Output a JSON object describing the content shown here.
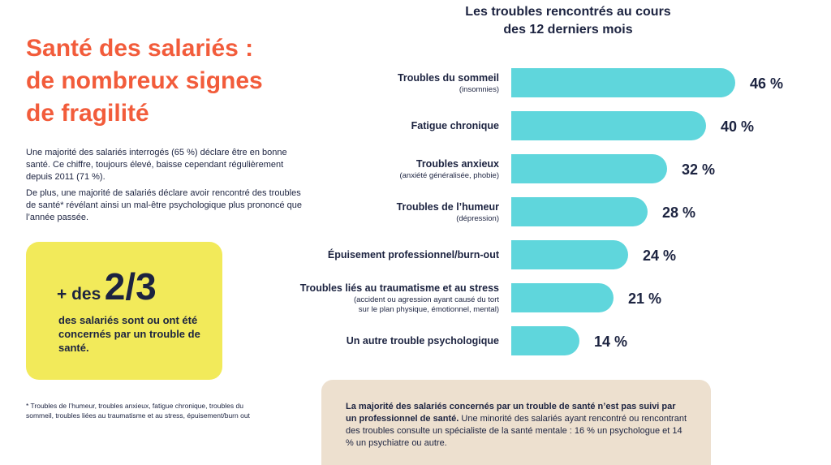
{
  "page": {
    "title_lines": [
      "Santé des salariés :",
      "de nombreux signes",
      "de fragilité"
    ],
    "paragraph1": "Une majorité des salariés interrogés (65 %) déclare être en bonne santé. Ce chiffre, toujours élevé, baisse cependant régulièrement depuis 2011 (71 %).",
    "paragraph2": "De plus, une majorité de salariés déclare avoir rencontré des troubles de santé* révélant ainsi un mal-être psychologique plus prononcé que l’année passée.",
    "footnote": "* Troubles de l’humeur, troubles anxieux, fatigue chronique, troubles du sommeil, troubles liées au traumatisme et au stress, épuisement/burn out"
  },
  "callout": {
    "prefix": "+ des",
    "fraction": "2/3",
    "text": "des salariés sont ou ont été concernés par un trouble de santé."
  },
  "note": {
    "bold": "La majorité des salariés concernés par un trouble de santé n’est pas suivi par un professionnel de santé.",
    "rest": " Une minorité des salariés ayant rencontré ou rencontrant des troubles consulte un spécialiste de la santé mentale : 16 % un psychologue et 14 % un psychiatre ou autre."
  },
  "colors": {
    "title": "#f25c3b",
    "bar": "#5fd6dc",
    "callout": "#f2ea5a",
    "note": "#ede0cf",
    "text": "#1c2340"
  },
  "chart_data": {
    "type": "bar",
    "orientation": "horizontal",
    "title_lines": [
      "Les troubles rencontrés au cours",
      "des 12 derniers mois"
    ],
    "categories": [
      "Troubles du sommeil",
      "Fatigue chronique",
      "Troubles anxieux",
      "Troubles de l’humeur",
      "Épuisement professionnel/burn-out",
      "Troubles liés au traumatisme et au stress",
      "Un autre trouble psychologique"
    ],
    "sublabels": [
      [
        "(insomnies)"
      ],
      [],
      [
        "(anxiété généralisée, phobie)"
      ],
      [
        "(dépression)"
      ],
      [],
      [
        "(accident ou agression ayant causé du tort",
        "sur le plan physique, émotionnel, mental)"
      ],
      []
    ],
    "values": [
      46,
      40,
      32,
      28,
      24,
      21,
      14
    ],
    "value_labels": [
      "46 %",
      "40 %",
      "32 %",
      "28 %",
      "24 %",
      "21 %",
      "14 %"
    ],
    "unit": "%",
    "xlim": [
      0,
      50
    ],
    "grid": false,
    "legend": "none"
  }
}
